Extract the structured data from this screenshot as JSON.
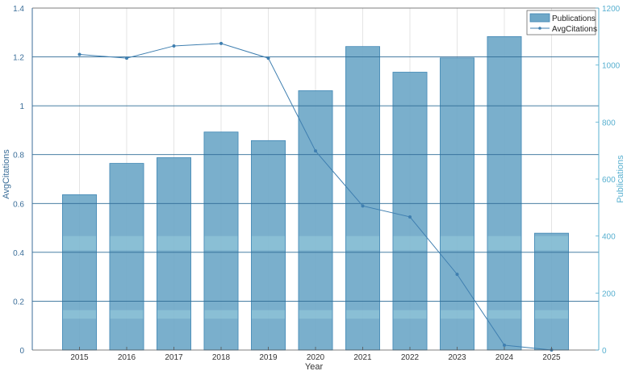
{
  "chart_data": {
    "type": "bar",
    "categories": [
      "2015",
      "2016",
      "2017",
      "2018",
      "2019",
      "2020",
      "2021",
      "2022",
      "2023",
      "2024",
      "2025"
    ],
    "series": [
      {
        "name": "Publications",
        "type": "bar",
        "axis": "right",
        "values": [
          545,
          655,
          675,
          765,
          735,
          910,
          1065,
          975,
          1025,
          1100,
          410
        ]
      },
      {
        "name": "AvgCitations",
        "type": "line",
        "axis": "left",
        "values": [
          1.21,
          1.195,
          1.245,
          1.255,
          1.195,
          0.815,
          0.59,
          0.545,
          0.31,
          0.02,
          0.0
        ]
      }
    ],
    "xlabel": "Year",
    "ylabel_left": "AvgCitations",
    "ylabel_right": "Publications",
    "ylim_left": [
      0,
      1.4
    ],
    "ylim_right": [
      0,
      1200
    ],
    "yticks_left": [
      "0",
      "0.2",
      "0.4",
      "0.6",
      "0.8",
      "1",
      "1.2",
      "1.4"
    ],
    "yticks_right": [
      "0",
      "200",
      "400",
      "600",
      "800",
      "1000",
      "1200"
    ],
    "legend_position": "top-right",
    "grid": true,
    "colors": {
      "bar_fill": "#6fa8c8",
      "bar_edge": "#3f86b4",
      "line": "#3f7fb0",
      "left_axis": "#3b6e99",
      "right_axis": "#58b0d0",
      "grid_h": "#2f6c96",
      "grid_v": "#d8d8d8",
      "band": "#a8dde6"
    }
  }
}
